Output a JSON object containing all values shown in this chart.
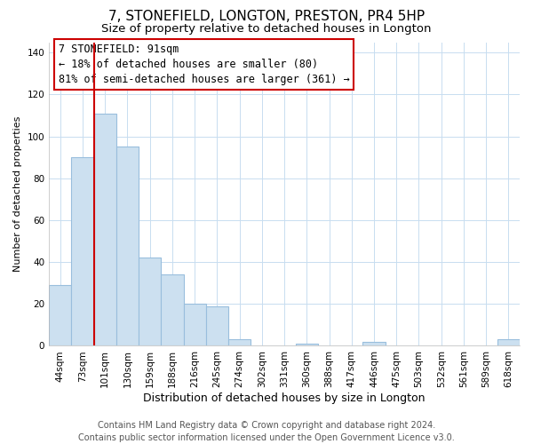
{
  "title": "7, STONEFIELD, LONGTON, PRESTON, PR4 5HP",
  "subtitle": "Size of property relative to detached houses in Longton",
  "xlabel": "Distribution of detached houses by size in Longton",
  "ylabel": "Number of detached properties",
  "categories": [
    "44sqm",
    "73sqm",
    "101sqm",
    "130sqm",
    "159sqm",
    "188sqm",
    "216sqm",
    "245sqm",
    "274sqm",
    "302sqm",
    "331sqm",
    "360sqm",
    "388sqm",
    "417sqm",
    "446sqm",
    "475sqm",
    "503sqm",
    "532sqm",
    "561sqm",
    "589sqm",
    "618sqm"
  ],
  "values": [
    29,
    90,
    111,
    95,
    42,
    34,
    20,
    19,
    3,
    0,
    0,
    1,
    0,
    0,
    2,
    0,
    0,
    0,
    0,
    0,
    3
  ],
  "bar_color": "#cce0f0",
  "bar_edge_color": "#99bedd",
  "vline_color": "#cc0000",
  "vline_index": 2,
  "annotation_text_line1": "7 STONEFIELD: 91sqm",
  "annotation_text_line2": "← 18% of detached houses are smaller (80)",
  "annotation_text_line3": "81% of semi-detached houses are larger (361) →",
  "ylim": [
    0,
    145
  ],
  "yticks": [
    0,
    20,
    40,
    60,
    80,
    100,
    120,
    140
  ],
  "footer_line1": "Contains HM Land Registry data © Crown copyright and database right 2024.",
  "footer_line2": "Contains public sector information licensed under the Open Government Licence v3.0.",
  "background_color": "#ffffff",
  "grid_color": "#c8ddf0",
  "title_fontsize": 11,
  "subtitle_fontsize": 9.5,
  "xlabel_fontsize": 9,
  "ylabel_fontsize": 8,
  "tick_fontsize": 7.5,
  "annotation_fontsize": 8.5,
  "footer_fontsize": 7
}
